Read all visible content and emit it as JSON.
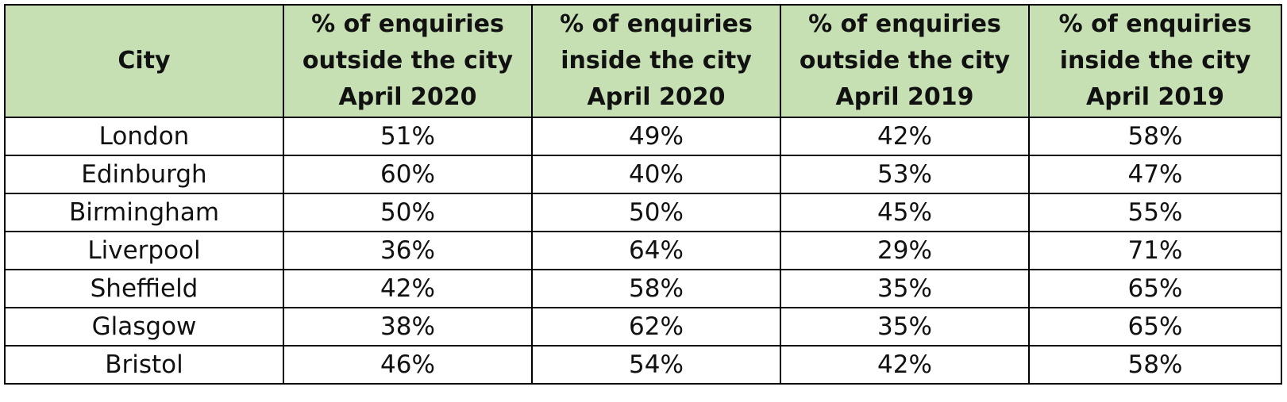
{
  "chart_data": {
    "type": "table",
    "headers": [
      [
        "City"
      ],
      [
        "% of enquiries",
        "outside the city",
        "April 2020"
      ],
      [
        "% of enquiries",
        "inside the city",
        "April 2020"
      ],
      [
        "% of enquiries",
        "outside the city",
        "April 2019"
      ],
      [
        "% of enquiries",
        "inside the city",
        "April 2019"
      ]
    ],
    "rows": [
      [
        "London",
        "51%",
        "49%",
        "42%",
        "58%"
      ],
      [
        "Edinburgh",
        "60%",
        "40%",
        "53%",
        "47%"
      ],
      [
        "Birmingham",
        "50%",
        "50%",
        "45%",
        "55%"
      ],
      [
        "Liverpool",
        "36%",
        "64%",
        "29%",
        "71%"
      ],
      [
        "Sheffield",
        "42%",
        "58%",
        "35%",
        "65%"
      ],
      [
        "Glasgow",
        "38%",
        "62%",
        "35%",
        "65%"
      ],
      [
        "Bristol",
        "46%",
        "54%",
        "42%",
        "58%"
      ]
    ],
    "colors": {
      "header_background": "#c6e0b4",
      "border": "#000000"
    }
  }
}
